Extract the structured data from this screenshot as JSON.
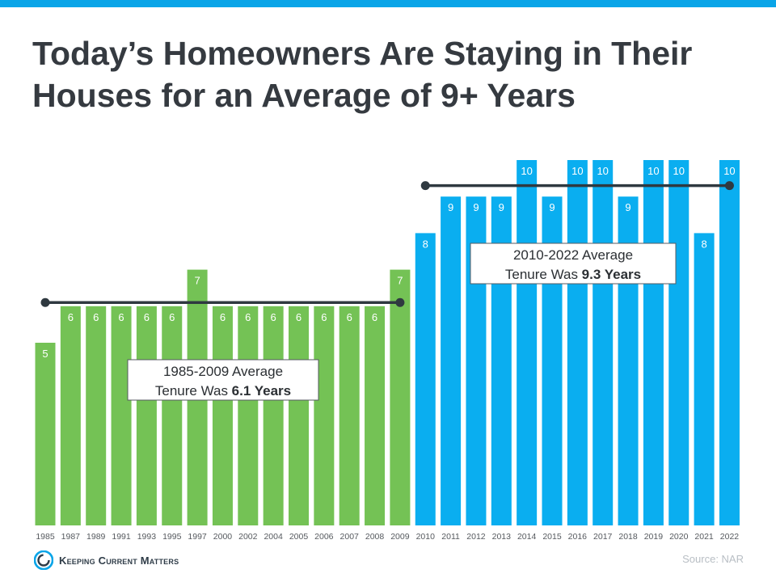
{
  "title_lines": [
    "Today’s Homeowners Are Staying in Their",
    "Houses for an Average of 9+ Years"
  ],
  "brand": "Keeping Current Matters",
  "source": "Source: NAR",
  "colors": {
    "accent": "#0aa5e8",
    "green": "#74c255",
    "blue": "#0aaef0",
    "line": "#2f3940",
    "title": "#353a40"
  },
  "chart_data": {
    "type": "bar",
    "categories": [
      "1985",
      "1987",
      "1989",
      "1991",
      "1993",
      "1995",
      "1997",
      "2000",
      "2002",
      "2004",
      "2005",
      "2006",
      "2007",
      "2008",
      "2009",
      "2010",
      "2011",
      "2012",
      "2013",
      "2014",
      "2015",
      "2016",
      "2017",
      "2018",
      "2019",
      "2020",
      "2021",
      "2022"
    ],
    "values": [
      5,
      6,
      6,
      6,
      6,
      6,
      7,
      6,
      6,
      6,
      6,
      6,
      6,
      6,
      7,
      8,
      9,
      9,
      9,
      10,
      9,
      10,
      10,
      9,
      10,
      10,
      8,
      10
    ],
    "data_labels": [
      "5",
      "6",
      "6",
      "6",
      "6",
      "6",
      "7",
      "6",
      "6",
      "6",
      "6",
      "6",
      "6",
      "6",
      "7",
      "8",
      "9",
      "9",
      "9",
      "10",
      "9",
      "10",
      "10",
      "9",
      "10",
      "10",
      "8",
      "10"
    ],
    "ylim": [
      0,
      10
    ],
    "grid": false,
    "legend": "none",
    "groups": [
      {
        "from": "1985",
        "to": "2009",
        "color": "#74c255",
        "average": 6.1,
        "label_line1": "1985-2009 Average",
        "label_prefix": "Tenure  Was ",
        "label_bold": "6.1 Years"
      },
      {
        "from": "2010",
        "to": "2022",
        "color": "#0aaef0",
        "average": 9.3,
        "label_line1": "2010-2022 Average",
        "label_prefix": "Tenure  Was ",
        "label_bold": "9.3 Years"
      }
    ]
  }
}
